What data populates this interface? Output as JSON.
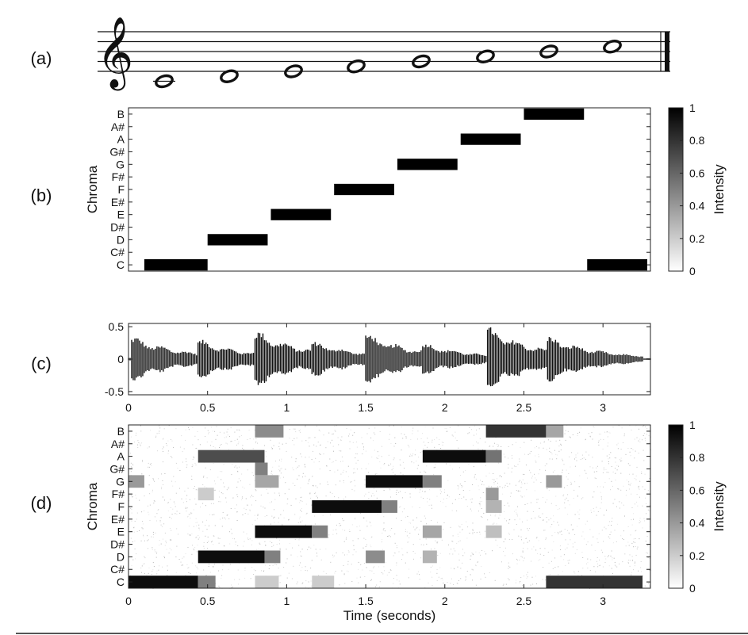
{
  "panels": {
    "a": "(a)",
    "b": "(b)",
    "c": "(c)",
    "d": "(d)"
  },
  "colors": {
    "ink": "#111111",
    "colorbar_high": "#000000",
    "colorbar_low": "#ffffff"
  },
  "chart_data": [
    {
      "panel": "(a)",
      "type": "other",
      "description_kind": "music-staff",
      "notes": [
        "C",
        "D",
        "E",
        "F",
        "G",
        "A",
        "B",
        "C"
      ],
      "note_values": [
        "whole",
        "whole",
        "whole",
        "whole",
        "whole",
        "whole",
        "whole",
        "whole"
      ]
    },
    {
      "panel": "(b)",
      "type": "heatmap",
      "ylabel": "Chroma",
      "yticks": [
        "C",
        "C#",
        "D",
        "D#",
        "E",
        "E#",
        "F",
        "F#",
        "G",
        "G#",
        "A",
        "A#",
        "B"
      ],
      "colorbar_label": "Intensity",
      "colorbar_ticks": [
        "0",
        "0.2",
        "0.4",
        "0.6",
        "0.8",
        "1"
      ],
      "x_range": [
        0,
        3.3
      ],
      "blocks": [
        {
          "chroma": "C",
          "start": 0.1,
          "end": 0.5,
          "value": 1
        },
        {
          "chroma": "D",
          "start": 0.5,
          "end": 0.88,
          "value": 1
        },
        {
          "chroma": "E",
          "start": 0.9,
          "end": 1.28,
          "value": 1
        },
        {
          "chroma": "F",
          "start": 1.3,
          "end": 1.68,
          "value": 1
        },
        {
          "chroma": "G",
          "start": 1.7,
          "end": 2.08,
          "value": 1
        },
        {
          "chroma": "A",
          "start": 2.1,
          "end": 2.48,
          "value": 1
        },
        {
          "chroma": "B",
          "start": 2.5,
          "end": 2.88,
          "value": 1
        },
        {
          "chroma": "C",
          "start": 2.9,
          "end": 3.28,
          "value": 1
        }
      ]
    },
    {
      "panel": "(c)",
      "type": "line",
      "yticks": [
        "0.5",
        "0",
        "-0.5"
      ],
      "ylim": [
        -0.55,
        0.55
      ],
      "xticks": [
        "0",
        "0.5",
        "1",
        "1.5",
        "2",
        "2.5",
        "3"
      ],
      "xlim": [
        0,
        3.3
      ],
      "onsets": [
        {
          "t": 0.02,
          "amp": 0.38
        },
        {
          "t": 0.44,
          "amp": 0.33
        },
        {
          "t": 0.8,
          "amp": 0.48
        },
        {
          "t": 1.16,
          "amp": 0.3
        },
        {
          "t": 1.5,
          "amp": 0.43
        },
        {
          "t": 1.86,
          "amp": 0.27
        },
        {
          "t": 2.26,
          "amp": 0.55
        },
        {
          "t": 2.64,
          "amp": 0.4
        }
      ]
    },
    {
      "panel": "(d)",
      "type": "heatmap",
      "ylabel": "Chroma",
      "xlabel": "Time (seconds)",
      "yticks": [
        "C",
        "C#",
        "D",
        "D#",
        "E",
        "E#",
        "F",
        "F#",
        "G",
        "G#",
        "A",
        "A#",
        "B"
      ],
      "xticks": [
        "0",
        "0.5",
        "1",
        "1.5",
        "2",
        "2.5",
        "3"
      ],
      "colorbar_label": "Intensity",
      "colorbar_ticks": [
        "0",
        "0.2",
        "0.4",
        "0.6",
        "0.8",
        "1"
      ],
      "x_range": [
        0,
        3.3
      ],
      "blocks": [
        {
          "chroma": "C",
          "start": 0.0,
          "end": 0.44,
          "value": 0.95
        },
        {
          "chroma": "C",
          "start": 0.44,
          "end": 0.55,
          "value": 0.5
        },
        {
          "chroma": "C",
          "start": 0.8,
          "end": 0.95,
          "value": 0.2
        },
        {
          "chroma": "C",
          "start": 1.16,
          "end": 1.3,
          "value": 0.2
        },
        {
          "chroma": "C",
          "start": 2.64,
          "end": 3.25,
          "value": 0.8
        },
        {
          "chroma": "D",
          "start": 0.44,
          "end": 0.86,
          "value": 0.95
        },
        {
          "chroma": "D",
          "start": 0.86,
          "end": 0.96,
          "value": 0.5
        },
        {
          "chroma": "D",
          "start": 1.5,
          "end": 1.62,
          "value": 0.45
        },
        {
          "chroma": "D",
          "start": 1.86,
          "end": 1.95,
          "value": 0.3
        },
        {
          "chroma": "E",
          "start": 0.8,
          "end": 1.16,
          "value": 0.95
        },
        {
          "chroma": "E",
          "start": 1.16,
          "end": 1.26,
          "value": 0.5
        },
        {
          "chroma": "E",
          "start": 1.86,
          "end": 1.98,
          "value": 0.35
        },
        {
          "chroma": "E",
          "start": 2.26,
          "end": 2.36,
          "value": 0.25
        },
        {
          "chroma": "F",
          "start": 1.16,
          "end": 1.6,
          "value": 0.95
        },
        {
          "chroma": "F",
          "start": 1.6,
          "end": 1.7,
          "value": 0.5
        },
        {
          "chroma": "F",
          "start": 2.26,
          "end": 2.36,
          "value": 0.3
        },
        {
          "chroma": "F#",
          "start": 0.44,
          "end": 0.54,
          "value": 0.2
        },
        {
          "chroma": "F#",
          "start": 2.26,
          "end": 2.34,
          "value": 0.4
        },
        {
          "chroma": "G",
          "start": 0.0,
          "end": 0.1,
          "value": 0.4
        },
        {
          "chroma": "G",
          "start": 0.8,
          "end": 0.95,
          "value": 0.35
        },
        {
          "chroma": "G",
          "start": 1.5,
          "end": 1.86,
          "value": 0.95
        },
        {
          "chroma": "G",
          "start": 1.86,
          "end": 1.98,
          "value": 0.5
        },
        {
          "chroma": "G",
          "start": 2.64,
          "end": 2.74,
          "value": 0.4
        },
        {
          "chroma": "G#",
          "start": 0.8,
          "end": 0.88,
          "value": 0.5
        },
        {
          "chroma": "A",
          "start": 0.44,
          "end": 0.86,
          "value": 0.7
        },
        {
          "chroma": "A",
          "start": 1.86,
          "end": 2.26,
          "value": 0.95
        },
        {
          "chroma": "A",
          "start": 2.26,
          "end": 2.36,
          "value": 0.55
        },
        {
          "chroma": "B",
          "start": 0.8,
          "end": 0.98,
          "value": 0.45
        },
        {
          "chroma": "B",
          "start": 2.26,
          "end": 2.64,
          "value": 0.8
        },
        {
          "chroma": "B",
          "start": 2.64,
          "end": 2.75,
          "value": 0.35
        }
      ]
    }
  ]
}
